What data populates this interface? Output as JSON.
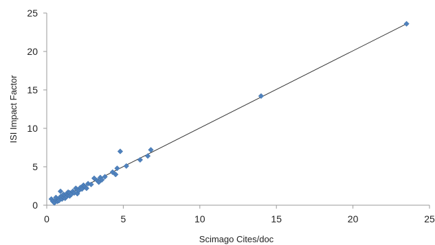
{
  "chart_data": {
    "type": "scatter",
    "title": "",
    "xlabel": "Scimago Cites/doc",
    "ylabel": "ISI Impact Factor",
    "xlim": [
      0,
      25
    ],
    "ylim": [
      0,
      25
    ],
    "x_ticks": [
      0,
      5,
      10,
      15,
      20,
      25
    ],
    "y_ticks": [
      0,
      5,
      10,
      15,
      20,
      25
    ],
    "grid": false,
    "legend": "none",
    "marker": "diamond",
    "marker_color": "#4f81bd",
    "trendline": {
      "type": "linear",
      "color": "#333333",
      "x": [
        0.4,
        23.5
      ],
      "y": [
        0.4,
        23.6
      ]
    },
    "points": [
      {
        "x": 0.3,
        "y": 0.8
      },
      {
        "x": 0.4,
        "y": 0.5
      },
      {
        "x": 0.5,
        "y": 0.3
      },
      {
        "x": 0.6,
        "y": 0.7
      },
      {
        "x": 0.6,
        "y": 1.0
      },
      {
        "x": 0.7,
        "y": 0.5
      },
      {
        "x": 0.8,
        "y": 0.9
      },
      {
        "x": 0.8,
        "y": 0.6
      },
      {
        "x": 0.9,
        "y": 1.1
      },
      {
        "x": 0.9,
        "y": 1.8
      },
      {
        "x": 1.0,
        "y": 0.8
      },
      {
        "x": 1.0,
        "y": 1.2
      },
      {
        "x": 1.1,
        "y": 1.0
      },
      {
        "x": 1.1,
        "y": 1.4
      },
      {
        "x": 1.2,
        "y": 1.2
      },
      {
        "x": 1.2,
        "y": 0.9
      },
      {
        "x": 1.3,
        "y": 1.5
      },
      {
        "x": 1.3,
        "y": 1.1
      },
      {
        "x": 1.4,
        "y": 1.3
      },
      {
        "x": 1.4,
        "y": 1.7
      },
      {
        "x": 1.5,
        "y": 1.6
      },
      {
        "x": 1.5,
        "y": 1.2
      },
      {
        "x": 1.6,
        "y": 1.4
      },
      {
        "x": 1.7,
        "y": 1.8
      },
      {
        "x": 1.8,
        "y": 1.6
      },
      {
        "x": 1.9,
        "y": 2.2
      },
      {
        "x": 2.0,
        "y": 1.5
      },
      {
        "x": 2.0,
        "y": 2.0
      },
      {
        "x": 2.1,
        "y": 1.9
      },
      {
        "x": 2.2,
        "y": 2.3
      },
      {
        "x": 2.3,
        "y": 2.1
      },
      {
        "x": 2.4,
        "y": 2.6
      },
      {
        "x": 2.5,
        "y": 2.4
      },
      {
        "x": 2.6,
        "y": 2.2
      },
      {
        "x": 2.7,
        "y": 2.8
      },
      {
        "x": 2.9,
        "y": 2.7
      },
      {
        "x": 3.1,
        "y": 3.5
      },
      {
        "x": 3.3,
        "y": 3.2
      },
      {
        "x": 3.4,
        "y": 3.0
      },
      {
        "x": 3.5,
        "y": 3.6
      },
      {
        "x": 3.6,
        "y": 3.3
      },
      {
        "x": 3.8,
        "y": 3.7
      },
      {
        "x": 4.3,
        "y": 4.3
      },
      {
        "x": 4.5,
        "y": 4.0
      },
      {
        "x": 4.6,
        "y": 4.8
      },
      {
        "x": 4.8,
        "y": 7.0
      },
      {
        "x": 5.2,
        "y": 5.1
      },
      {
        "x": 6.1,
        "y": 5.9
      },
      {
        "x": 6.6,
        "y": 6.4
      },
      {
        "x": 6.8,
        "y": 7.2
      },
      {
        "x": 14.0,
        "y": 14.2
      },
      {
        "x": 23.5,
        "y": 23.6
      }
    ]
  }
}
